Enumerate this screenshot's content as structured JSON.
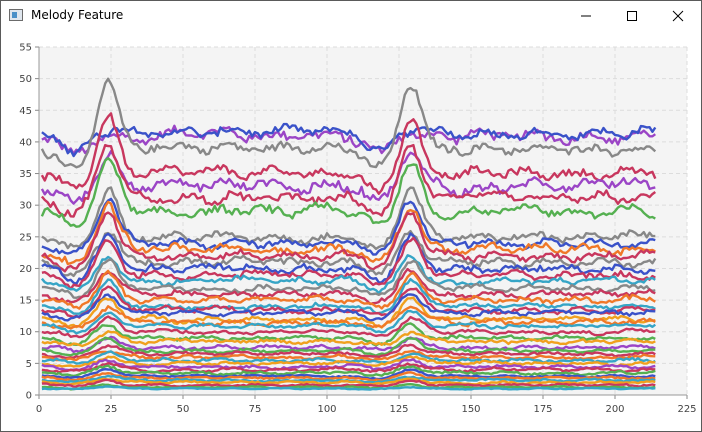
{
  "window": {
    "title": "Melody Feature",
    "icons": {
      "app": "app-window-icon",
      "minimize": "minimize-icon",
      "maximize": "maximize-icon",
      "close": "close-icon"
    }
  },
  "chart_data": {
    "type": "line",
    "xlim": [
      0,
      225
    ],
    "ylim": [
      0,
      55
    ],
    "x_ticks": [
      "0",
      "25",
      "50",
      "75",
      "100",
      "125",
      "150",
      "175",
      "200",
      "225"
    ],
    "y_ticks": [
      "0",
      "5",
      "10",
      "15",
      "20",
      "25",
      "30",
      "35",
      "40",
      "45",
      "50",
      "55"
    ],
    "grid": true,
    "x": "frame index 1..214",
    "palette": [
      "#3a52c9",
      "#9b45c6",
      "#888888",
      "#c8375e",
      "#55b051",
      "#f07828",
      "#36a5c6",
      "#f0a01e"
    ],
    "series_profiles": [
      {
        "color": "#9b45c6",
        "base": 41,
        "peak": 41,
        "rough": 1.2
      },
      {
        "color": "#3a52c9",
        "base": 41.5,
        "peak": 41.5,
        "rough": 1.0
      },
      {
        "color": "#888888",
        "base": 39,
        "peak": 49.5,
        "rough": 1.0
      },
      {
        "color": "#c8375e",
        "base": 35,
        "peak": 44,
        "rough": 1.0
      },
      {
        "color": "#9b45c6",
        "base": 33,
        "peak": 38,
        "rough": 1.2
      },
      {
        "color": "#c8375e",
        "base": 31,
        "peak": 40,
        "rough": 1.0
      },
      {
        "color": "#55b051",
        "base": 29,
        "peak": 37,
        "rough": 1.0
      },
      {
        "color": "#888888",
        "base": 25,
        "peak": 33,
        "rough": 0.8
      },
      {
        "color": "#3a52c9",
        "base": 24,
        "peak": 31,
        "rough": 0.8
      },
      {
        "color": "#f07828",
        "base": 23,
        "peak": 30,
        "rough": 0.9
      },
      {
        "color": "#c8375e",
        "base": 22,
        "peak": 29,
        "rough": 0.8
      },
      {
        "color": "#888888",
        "base": 21,
        "peak": 26,
        "rough": 0.8
      },
      {
        "color": "#3a52c9",
        "base": 20,
        "peak": 25,
        "rough": 0.8
      },
      {
        "color": "#c8375e",
        "base": 19,
        "peak": 24,
        "rough": 0.7
      },
      {
        "color": "#36a5c6",
        "base": 18,
        "peak": 22,
        "rough": 0.6
      },
      {
        "color": "#888888",
        "base": 17,
        "peak": 21,
        "rough": 0.6
      },
      {
        "color": "#c8375e",
        "base": 16,
        "peak": 20,
        "rough": 0.6
      },
      {
        "color": "#f07828",
        "base": 15,
        "peak": 19,
        "rough": 0.6
      },
      {
        "color": "#36a5c6",
        "base": 14,
        "peak": 18,
        "rough": 0.5
      },
      {
        "color": "#c8375e",
        "base": 13.5,
        "peak": 17,
        "rough": 0.5
      },
      {
        "color": "#3a52c9",
        "base": 13,
        "peak": 16,
        "rough": 0.5
      },
      {
        "color": "#f0a01e",
        "base": 12,
        "peak": 15,
        "rough": 0.5
      },
      {
        "color": "#f07828",
        "base": 11.5,
        "peak": 14,
        "rough": 0.5
      },
      {
        "color": "#36a5c6",
        "base": 11,
        "peak": 13,
        "rough": 0.4
      },
      {
        "color": "#c8375e",
        "base": 10,
        "peak": 12,
        "rough": 0.4
      },
      {
        "color": "#55b051",
        "base": 9,
        "peak": 11,
        "rough": 0.4
      },
      {
        "color": "#f0a01e",
        "base": 8.5,
        "peak": 10,
        "rough": 0.4
      },
      {
        "color": "#9b45c6",
        "base": 7.5,
        "peak": 9,
        "rough": 0.4
      },
      {
        "color": "#55b051",
        "base": 7,
        "peak": 9,
        "rough": 0.3
      },
      {
        "color": "#c8375e",
        "base": 6.5,
        "peak": 8,
        "rough": 0.3
      },
      {
        "color": "#f07828",
        "base": 6,
        "peak": 7,
        "rough": 0.3
      },
      {
        "color": "#36a5c6",
        "base": 5.5,
        "peak": 6.5,
        "rough": 0.3
      },
      {
        "color": "#f0a01e",
        "base": 5,
        "peak": 6,
        "rough": 0.3
      },
      {
        "color": "#9b45c6",
        "base": 4.5,
        "peak": 5.5,
        "rough": 0.3
      },
      {
        "color": "#c8375e",
        "base": 4,
        "peak": 5,
        "rough": 0.3
      },
      {
        "color": "#55b051",
        "base": 3.5,
        "peak": 4.5,
        "rough": 0.3
      },
      {
        "color": "#3a52c9",
        "base": 3,
        "peak": 4,
        "rough": 0.2
      },
      {
        "color": "#f07828",
        "base": 2.7,
        "peak": 3.5,
        "rough": 0.2
      },
      {
        "color": "#36a5c6",
        "base": 2.3,
        "peak": 3,
        "rough": 0.2
      },
      {
        "color": "#f0a01e",
        "base": 2,
        "peak": 2.6,
        "rough": 0.2
      },
      {
        "color": "#c8375e",
        "base": 1.6,
        "peak": 2.2,
        "rough": 0.2
      },
      {
        "color": "#55b051",
        "base": 1.2,
        "peak": 1.6,
        "rough": 0.15
      },
      {
        "color": "#36a5c6",
        "base": 1,
        "peak": 1.3,
        "rough": 0.1
      }
    ]
  }
}
